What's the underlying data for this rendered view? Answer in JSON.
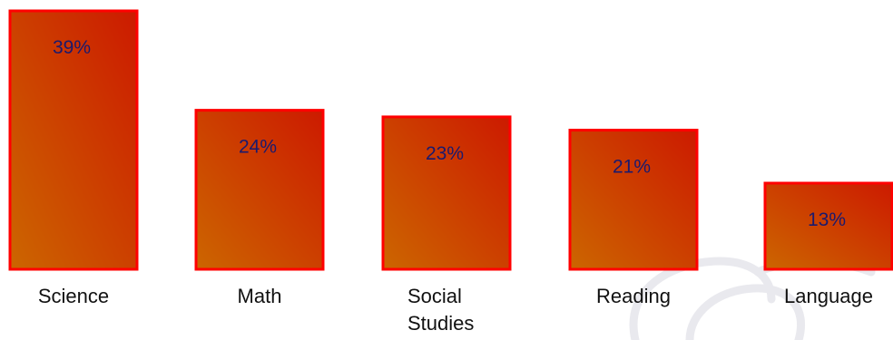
{
  "chart_data": {
    "type": "bar",
    "categories": [
      "Science",
      "Math",
      "Social Studies",
      "Reading",
      "Language"
    ],
    "category_lines": [
      [
        "Science"
      ],
      [
        "Math"
      ],
      [
        "Social",
        "Studies"
      ],
      [
        "Reading"
      ],
      [
        "Language"
      ]
    ],
    "values": [
      39,
      24,
      23,
      21,
      13
    ],
    "value_labels": [
      "39%",
      "24%",
      "23%",
      "21%",
      "13%"
    ],
    "title": "",
    "xlabel": "",
    "ylabel": "",
    "ylim": [
      0,
      39
    ],
    "grid": false,
    "legend": "none",
    "colors": {
      "bar_fill_start": "#cc6600",
      "bar_fill_end": "#cc1a00",
      "bar_border": "#ff0000",
      "value_text": "#1a1a6e",
      "category_text": "#111111",
      "watermark": "#e9e9ee"
    }
  }
}
